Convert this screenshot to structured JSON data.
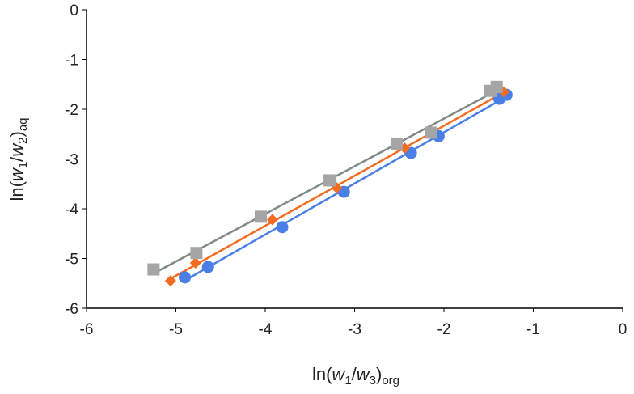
{
  "chart_data": {
    "type": "scatter",
    "title": "",
    "xlabel": {
      "base": "ln(",
      "v1": "w",
      "s1": "1",
      "slash": "/",
      "v2": "w",
      "s2": "3",
      "close": ")",
      "sub": "org"
    },
    "ylabel": {
      "base": "ln(",
      "v1": "w",
      "s1": "1",
      "slash": "/",
      "v2": "w",
      "s2": "2",
      "close": ")",
      "sub": "aq"
    },
    "xlim": [
      -6,
      0
    ],
    "ylim": [
      -6,
      0
    ],
    "xticks": [
      -6,
      -5,
      -4,
      -3,
      -2,
      -1,
      0
    ],
    "yticks": [
      -6,
      -5,
      -4,
      -3,
      -2,
      -1,
      0
    ],
    "grid": false,
    "trendlines": true,
    "series": [
      {
        "marker": "circle",
        "color": "#4a7fe8",
        "line_color": "#4a7fe8",
        "x": [
          -4.9,
          -4.64,
          -3.81,
          -3.12,
          -2.37,
          -2.06,
          -1.38,
          -1.3
        ],
        "y": [
          -5.38,
          -5.17,
          -4.37,
          -3.66,
          -2.88,
          -2.54,
          -1.79,
          -1.71
        ]
      },
      {
        "marker": "diamond",
        "color": "#f26b21",
        "line_color": "#f26b21",
        "x": [
          -5.06,
          -4.78,
          -3.92,
          -3.2,
          -2.44,
          -1.33
        ],
        "y": [
          -5.45,
          -5.09,
          -4.22,
          -3.58,
          -2.78,
          -1.65
        ]
      },
      {
        "marker": "square",
        "color": "#a5a5a5",
        "line_color": "#7f8a85",
        "x": [
          -5.25,
          -4.77,
          -4.05,
          -3.28,
          -2.53,
          -2.14,
          -1.48,
          -1.41
        ],
        "y": [
          -5.22,
          -4.89,
          -4.16,
          -3.43,
          -2.69,
          -2.47,
          -1.63,
          -1.55
        ]
      }
    ]
  }
}
